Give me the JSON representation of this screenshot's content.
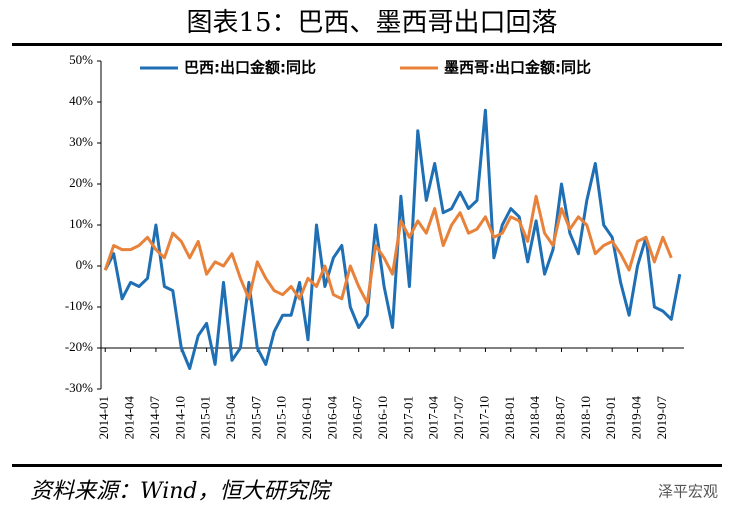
{
  "chart_data": {
    "type": "line",
    "title": "图表15：巴西、墨西哥出口回落",
    "source": "资料来源：Wind，恒大研究院",
    "watermark": "泽平宏观",
    "categories": [
      "2014-01",
      null,
      null,
      "2014-04",
      null,
      null,
      "2014-07",
      null,
      null,
      "2014-10",
      null,
      null,
      "2015-01",
      null,
      null,
      "2015-04",
      null,
      null,
      "2015-07",
      null,
      null,
      "2015-10",
      null,
      null,
      "2016-01",
      null,
      null,
      "2016-04",
      null,
      null,
      "2016-07",
      null,
      null,
      "2016-10",
      null,
      null,
      "2017-01",
      null,
      null,
      "2017-04",
      null,
      null,
      "2017-07",
      null,
      null,
      "2017-10",
      null,
      null,
      "2018-01",
      null,
      null,
      "2018-04",
      null,
      null,
      "2018-07",
      null,
      null,
      "2018-10",
      null,
      null,
      "2019-01",
      null,
      null,
      "2019-04",
      null,
      null,
      "2019-07",
      null,
      null
    ],
    "series": [
      {
        "name": "巴西:出口金额:同比",
        "color": "#1f6fb4",
        "values": [
          -1,
          3,
          -8,
          -4,
          -5,
          -3,
          10,
          -5,
          -6,
          -20,
          -25,
          -17,
          -14,
          -24,
          -4,
          -23,
          -20,
          -4,
          -20,
          -24,
          -16,
          -12,
          -12,
          -4,
          -18,
          10,
          -5,
          2,
          5,
          -10,
          -15,
          -12,
          10,
          -5,
          -15,
          17,
          -5,
          33,
          16,
          25,
          13,
          14,
          18,
          14,
          16,
          38,
          2,
          10,
          14,
          12,
          1,
          11,
          -2,
          4,
          20,
          8,
          3,
          16,
          25,
          10,
          7,
          -4,
          -12,
          0,
          7,
          -10,
          -11,
          -13,
          -2
        ]
      },
      {
        "name": "墨西哥:出口金额:同比",
        "color": "#e8823a",
        "values": [
          -1,
          5,
          4,
          4,
          5,
          7,
          4,
          2,
          8,
          6,
          2,
          6,
          -2,
          1,
          0,
          3,
          -3,
          -8,
          1,
          -3,
          -6,
          -7,
          -5,
          -8,
          -3,
          -5,
          0,
          -7,
          -8,
          0,
          -5,
          -9,
          5,
          2,
          -2,
          11,
          7,
          11,
          8,
          14,
          5,
          10,
          13,
          8,
          9,
          12,
          7,
          8,
          12,
          11,
          6,
          17,
          8,
          5,
          14,
          9,
          12,
          10,
          3,
          5,
          6,
          3,
          -1,
          6,
          7,
          1,
          7,
          2,
          null
        ]
      }
    ],
    "ylim": [
      -30,
      50
    ],
    "yticks": [
      {
        "value": -30,
        "label": "-30%"
      },
      {
        "value": -20,
        "label": "-20%"
      },
      {
        "value": -10,
        "label": "-10%"
      },
      {
        "value": 0,
        "label": "0%"
      },
      {
        "value": 10,
        "label": "10%"
      },
      {
        "value": 20,
        "label": "20%"
      },
      {
        "value": 30,
        "label": "30%"
      },
      {
        "value": 40,
        "label": "40%"
      },
      {
        "value": 50,
        "label": "50%"
      }
    ],
    "x_axis_crossing": -20,
    "legend": "top"
  }
}
